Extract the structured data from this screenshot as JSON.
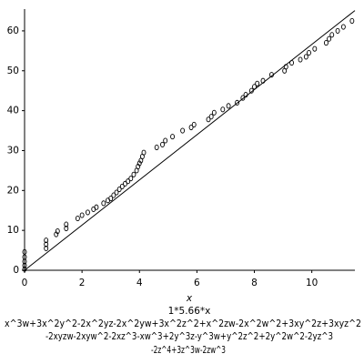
{
  "chart_data": {
    "type": "scatter",
    "x_label": "x",
    "caption": [
      "1*5.66*x",
      "x^3w+3x^2y^2-2x^2yz-2x^2yw+3x^2z^2+x^2zw-2x^2w^2+3xy^2z+3xyz^2",
      "-2xyzw-2xyw^2-2xz^3-xw^3+2y^3z-y^3w+y^2z^2+2y^2w^2-2yz^3",
      "-2z^4+3z^3w-2zw^3"
    ],
    "xlim": [
      0,
      11.5
    ],
    "ylim": [
      0,
      65
    ],
    "xticks": [
      0,
      2,
      4,
      6,
      8,
      10
    ],
    "yticks": [
      0,
      10,
      20,
      30,
      40,
      50,
      60
    ],
    "series": [
      {
        "color": "#000000",
        "marker": "circle",
        "x": [
          0,
          0,
          0,
          0,
          0,
          0.75,
          0.75,
          0.75,
          1.1,
          1.15,
          1.45,
          1.45,
          1.85,
          2.0,
          2.2,
          2.4,
          2.5,
          2.75,
          2.9,
          3.0,
          3.1,
          3.2,
          3.3,
          3.4,
          3.5,
          3.6,
          3.7,
          3.8,
          3.9,
          3.95,
          4.0,
          4.05,
          4.1,
          4.15,
          4.6,
          4.8,
          4.9,
          5.15,
          5.5,
          5.8,
          5.9,
          6.4,
          6.5,
          6.6,
          6.9,
          7.1,
          7.4,
          7.6,
          7.7,
          7.9,
          8.0,
          8.1,
          8.3,
          8.6,
          9.05,
          9.1,
          9.3,
          9.6,
          9.8,
          9.9,
          10.1,
          10.5,
          10.6,
          10.7,
          10.9,
          11.1,
          11.4
        ],
        "values": [
          0.3,
          1.2,
          2.2,
          3.3,
          4.6,
          5.5,
          6.5,
          7.5,
          9,
          9.8,
          10.5,
          11.5,
          13,
          13.8,
          14.5,
          15.3,
          15.8,
          16.8,
          17.5,
          18,
          18.8,
          19.5,
          20.3,
          21,
          21.7,
          22.3,
          23,
          24,
          25,
          26,
          26.8,
          27.5,
          28.5,
          29.5,
          30.8,
          31.5,
          32.5,
          33.5,
          35,
          35.8,
          36.5,
          37.8,
          38.5,
          39.5,
          40.3,
          41.2,
          42,
          43.2,
          44,
          45,
          46,
          46.8,
          47.5,
          49,
          50,
          51,
          52,
          52.8,
          53.5,
          54.5,
          55.5,
          57,
          58,
          59,
          60,
          61,
          62.5
        ]
      },
      {
        "color": "#000000",
        "marker": "line",
        "x": [
          0,
          11.5
        ],
        "values": [
          0,
          65.09
        ]
      }
    ]
  }
}
